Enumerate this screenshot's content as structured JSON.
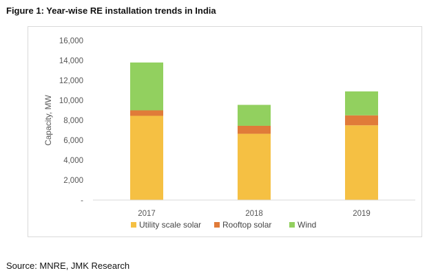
{
  "figure": {
    "title": "Figure 1: Year-wise RE installation trends in India",
    "source": "Source: MNRE, JMK Research"
  },
  "chart_data": {
    "type": "bar",
    "stacked": true,
    "categories": [
      "2017",
      "2018",
      "2019"
    ],
    "series": [
      {
        "name": "Utility scale solar",
        "values": [
          8450,
          6650,
          7500
        ],
        "color": "#F5C043"
      },
      {
        "name": "Rooftop solar",
        "values": [
          550,
          800,
          1000
        ],
        "color": "#E07B39"
      },
      {
        "name": "Wind",
        "values": [
          4800,
          2100,
          2400
        ],
        "color": "#92D05F"
      }
    ],
    "ylabel": "Capacity, MW",
    "xlabel": "",
    "ylim": [
      0,
      16000
    ],
    "yticks": [
      "-",
      "2,000",
      "4,000",
      "6,000",
      "8,000",
      "10,000",
      "12,000",
      "14,000",
      "16,000"
    ],
    "grid": false,
    "legend_position": "bottom"
  }
}
